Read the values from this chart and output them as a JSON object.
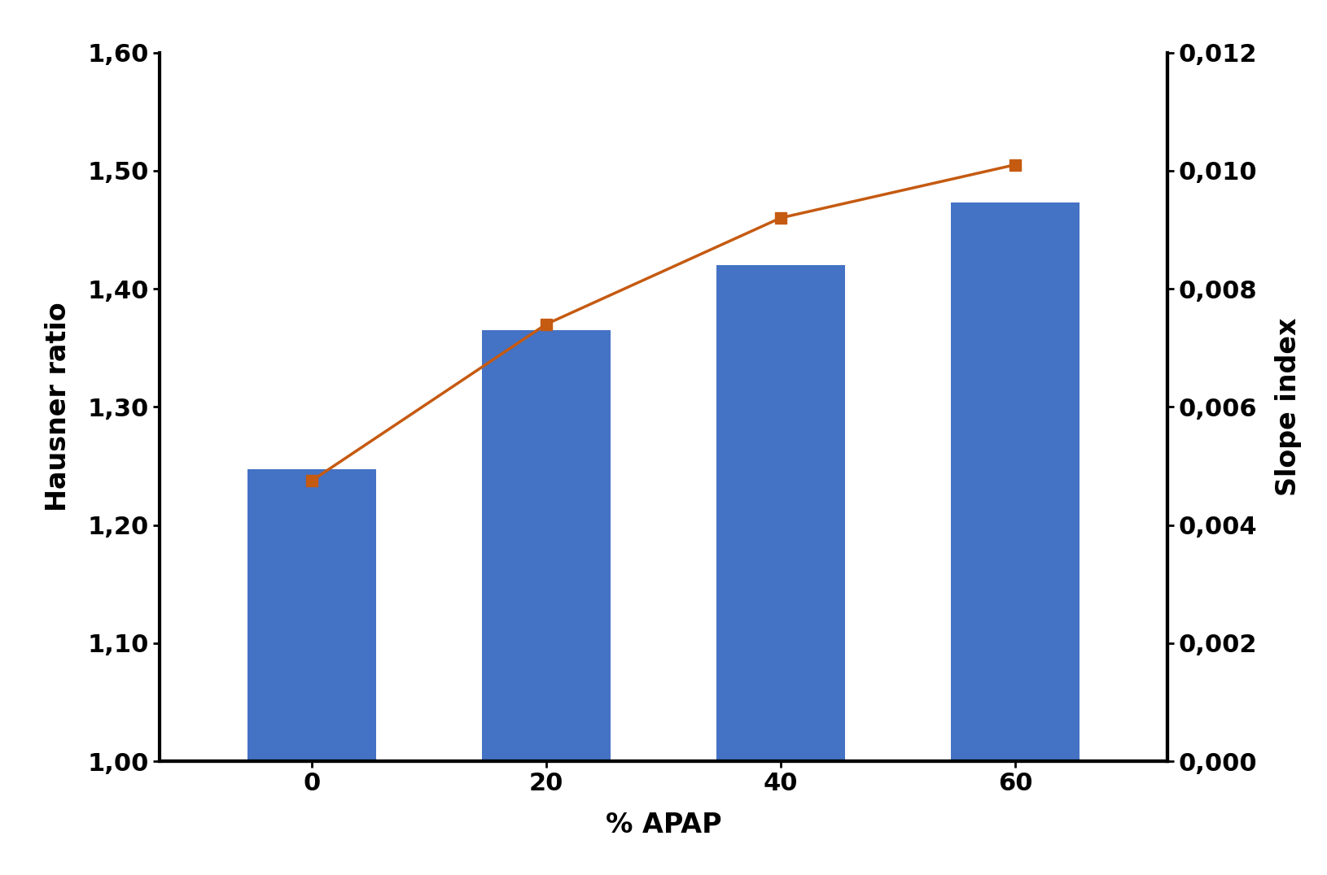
{
  "categories": [
    0,
    20,
    40,
    60
  ],
  "hausner_values": [
    1.247,
    1.365,
    1.42,
    1.473
  ],
  "slope_values": [
    0.00475,
    0.0074,
    0.0092,
    0.0101
  ],
  "bar_color": "#4472C4",
  "line_color": "#C55A11",
  "marker_color": "#C55A11",
  "left_ylim": [
    1.0,
    1.6
  ],
  "left_yticks": [
    1.0,
    1.1,
    1.2,
    1.3,
    1.4,
    1.5,
    1.6
  ],
  "right_ylim": [
    0.0,
    0.012
  ],
  "right_yticks": [
    0.0,
    0.002,
    0.004,
    0.006,
    0.008,
    0.01,
    0.012
  ],
  "xlabel": "% APAP",
  "ylabel_left": "Hausner ratio",
  "ylabel_right": "Slope index",
  "background_color": "#ffffff",
  "label_fontsize": 24,
  "tick_fontsize": 22,
  "bar_width": 0.55
}
